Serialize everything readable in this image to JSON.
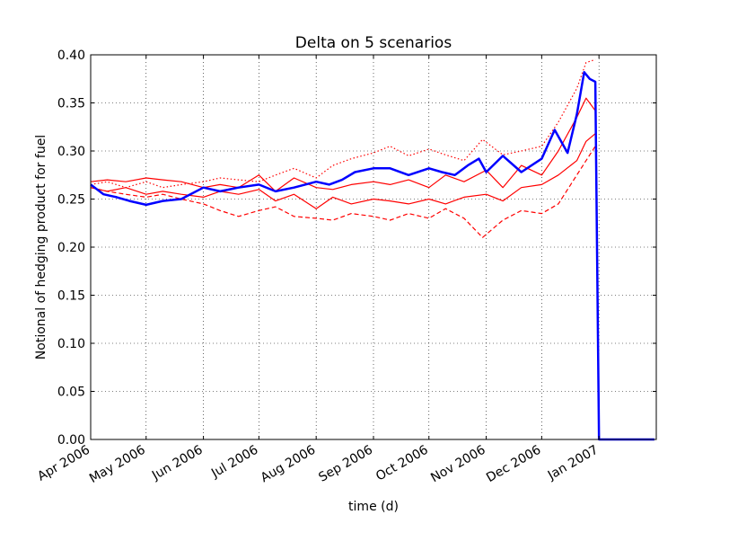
{
  "chart_data": {
    "type": "line",
    "title": "Delta on 5 scenarios",
    "xlabel": "time (d)",
    "ylabel": "Notional of hedging product for fuel",
    "xlim": [
      "2006-04-01",
      "2007-02-01"
    ],
    "ylim": [
      0,
      0.4
    ],
    "grid": true,
    "x_ticks": [
      "Apr 2006",
      "May 2006",
      "Jun 2006",
      "Jul 2006",
      "Aug 2006",
      "Sep 2006",
      "Oct 2006",
      "Nov 2006",
      "Dec 2006",
      "Jan 2007"
    ],
    "y_ticks": [
      "0.00",
      "0.05",
      "0.10",
      "0.15",
      "0.20",
      "0.25",
      "0.30",
      "0.35",
      "0.40"
    ],
    "colors": {
      "main": "#0000ff",
      "scenario": "#ff0000"
    },
    "series": [
      {
        "style": "solid-bold",
        "color": "#0000ff",
        "points": [
          [
            "2006-04-01",
            0.265
          ],
          [
            "2006-04-08",
            0.255
          ],
          [
            "2006-04-15",
            0.252
          ],
          [
            "2006-04-22",
            0.248
          ],
          [
            "2006-05-01",
            0.244
          ],
          [
            "2006-05-10",
            0.248
          ],
          [
            "2006-05-20",
            0.25
          ],
          [
            "2006-06-01",
            0.262
          ],
          [
            "2006-06-10",
            0.258
          ],
          [
            "2006-06-20",
            0.262
          ],
          [
            "2006-07-01",
            0.265
          ],
          [
            "2006-07-10",
            0.258
          ],
          [
            "2006-07-20",
            0.262
          ],
          [
            "2006-08-01",
            0.268
          ],
          [
            "2006-08-08",
            0.265
          ],
          [
            "2006-08-15",
            0.27
          ],
          [
            "2006-08-22",
            0.278
          ],
          [
            "2006-09-01",
            0.282
          ],
          [
            "2006-09-10",
            0.282
          ],
          [
            "2006-09-20",
            0.275
          ],
          [
            "2006-10-01",
            0.282
          ],
          [
            "2006-10-08",
            0.278
          ],
          [
            "2006-10-15",
            0.275
          ],
          [
            "2006-10-22",
            0.285
          ],
          [
            "2006-10-28",
            0.292
          ],
          [
            "2006-11-01",
            0.278
          ],
          [
            "2006-11-10",
            0.295
          ],
          [
            "2006-11-20",
            0.278
          ],
          [
            "2006-12-01",
            0.292
          ],
          [
            "2006-12-08",
            0.322
          ],
          [
            "2006-12-15",
            0.298
          ],
          [
            "2006-12-20",
            0.338
          ],
          [
            "2006-12-24",
            0.382
          ],
          [
            "2006-12-27",
            0.375
          ],
          [
            "2006-12-30",
            0.372
          ],
          [
            "2007-01-01",
            0.0
          ],
          [
            "2007-01-31",
            0.0
          ]
        ]
      },
      {
        "style": "solid",
        "color": "#ff0000",
        "points": [
          [
            "2006-04-01",
            0.268
          ],
          [
            "2006-04-10",
            0.27
          ],
          [
            "2006-04-20",
            0.268
          ],
          [
            "2006-05-01",
            0.272
          ],
          [
            "2006-05-10",
            0.27
          ],
          [
            "2006-05-20",
            0.268
          ],
          [
            "2006-06-01",
            0.262
          ],
          [
            "2006-06-10",
            0.265
          ],
          [
            "2006-06-20",
            0.262
          ],
          [
            "2006-07-01",
            0.275
          ],
          [
            "2006-07-10",
            0.258
          ],
          [
            "2006-07-20",
            0.272
          ],
          [
            "2006-08-01",
            0.262
          ],
          [
            "2006-08-10",
            0.26
          ],
          [
            "2006-08-20",
            0.265
          ],
          [
            "2006-09-01",
            0.268
          ],
          [
            "2006-09-10",
            0.265
          ],
          [
            "2006-09-20",
            0.27
          ],
          [
            "2006-10-01",
            0.262
          ],
          [
            "2006-10-10",
            0.275
          ],
          [
            "2006-10-20",
            0.268
          ],
          [
            "2006-11-01",
            0.28
          ],
          [
            "2006-11-10",
            0.262
          ],
          [
            "2006-11-20",
            0.285
          ],
          [
            "2006-12-01",
            0.275
          ],
          [
            "2006-12-10",
            0.3
          ],
          [
            "2006-12-20",
            0.335
          ],
          [
            "2006-12-25",
            0.355
          ],
          [
            "2006-12-30",
            0.342
          ]
        ]
      },
      {
        "style": "solid",
        "color": "#ff0000",
        "points": [
          [
            "2006-04-01",
            0.262
          ],
          [
            "2006-04-10",
            0.258
          ],
          [
            "2006-04-20",
            0.262
          ],
          [
            "2006-05-01",
            0.255
          ],
          [
            "2006-05-10",
            0.258
          ],
          [
            "2006-05-20",
            0.255
          ],
          [
            "2006-06-01",
            0.252
          ],
          [
            "2006-06-10",
            0.258
          ],
          [
            "2006-06-20",
            0.255
          ],
          [
            "2006-07-01",
            0.26
          ],
          [
            "2006-07-10",
            0.248
          ],
          [
            "2006-07-20",
            0.255
          ],
          [
            "2006-08-01",
            0.24
          ],
          [
            "2006-08-10",
            0.252
          ],
          [
            "2006-08-20",
            0.245
          ],
          [
            "2006-09-01",
            0.25
          ],
          [
            "2006-09-10",
            0.248
          ],
          [
            "2006-09-20",
            0.245
          ],
          [
            "2006-10-01",
            0.25
          ],
          [
            "2006-10-10",
            0.245
          ],
          [
            "2006-10-20",
            0.252
          ],
          [
            "2006-11-01",
            0.255
          ],
          [
            "2006-11-10",
            0.248
          ],
          [
            "2006-11-20",
            0.262
          ],
          [
            "2006-12-01",
            0.265
          ],
          [
            "2006-12-10",
            0.275
          ],
          [
            "2006-12-20",
            0.29
          ],
          [
            "2006-12-25",
            0.31
          ],
          [
            "2006-12-30",
            0.318
          ]
        ]
      },
      {
        "style": "dashed",
        "color": "#ff0000",
        "points": [
          [
            "2006-04-01",
            0.262
          ],
          [
            "2006-04-10",
            0.258
          ],
          [
            "2006-04-20",
            0.255
          ],
          [
            "2006-05-01",
            0.252
          ],
          [
            "2006-05-10",
            0.255
          ],
          [
            "2006-05-20",
            0.25
          ],
          [
            "2006-06-01",
            0.245
          ],
          [
            "2006-06-10",
            0.238
          ],
          [
            "2006-06-20",
            0.232
          ],
          [
            "2006-07-01",
            0.238
          ],
          [
            "2006-07-10",
            0.242
          ],
          [
            "2006-07-20",
            0.232
          ],
          [
            "2006-08-01",
            0.23
          ],
          [
            "2006-08-10",
            0.228
          ],
          [
            "2006-08-20",
            0.235
          ],
          [
            "2006-09-01",
            0.232
          ],
          [
            "2006-09-10",
            0.228
          ],
          [
            "2006-09-20",
            0.235
          ],
          [
            "2006-10-01",
            0.23
          ],
          [
            "2006-10-10",
            0.24
          ],
          [
            "2006-10-20",
            0.23
          ],
          [
            "2006-10-30",
            0.21
          ],
          [
            "2006-11-10",
            0.228
          ],
          [
            "2006-11-20",
            0.238
          ],
          [
            "2006-12-01",
            0.235
          ],
          [
            "2006-12-10",
            0.245
          ],
          [
            "2006-12-20",
            0.275
          ],
          [
            "2006-12-25",
            0.29
          ],
          [
            "2006-12-30",
            0.305
          ]
        ]
      },
      {
        "style": "dotted",
        "color": "#ff0000",
        "points": [
          [
            "2006-04-01",
            0.265
          ],
          [
            "2006-04-10",
            0.268
          ],
          [
            "2006-04-20",
            0.262
          ],
          [
            "2006-05-01",
            0.268
          ],
          [
            "2006-05-10",
            0.262
          ],
          [
            "2006-05-20",
            0.265
          ],
          [
            "2006-06-01",
            0.268
          ],
          [
            "2006-06-10",
            0.272
          ],
          [
            "2006-06-20",
            0.27
          ],
          [
            "2006-07-01",
            0.268
          ],
          [
            "2006-07-10",
            0.275
          ],
          [
            "2006-07-20",
            0.282
          ],
          [
            "2006-08-01",
            0.272
          ],
          [
            "2006-08-10",
            0.285
          ],
          [
            "2006-08-20",
            0.292
          ],
          [
            "2006-09-01",
            0.298
          ],
          [
            "2006-09-10",
            0.305
          ],
          [
            "2006-09-20",
            0.295
          ],
          [
            "2006-10-01",
            0.302
          ],
          [
            "2006-10-10",
            0.296
          ],
          [
            "2006-10-20",
            0.29
          ],
          [
            "2006-10-30",
            0.312
          ],
          [
            "2006-11-10",
            0.296
          ],
          [
            "2006-11-20",
            0.3
          ],
          [
            "2006-12-01",
            0.305
          ],
          [
            "2006-12-10",
            0.33
          ],
          [
            "2006-12-20",
            0.365
          ],
          [
            "2006-12-25",
            0.392
          ],
          [
            "2006-12-30",
            0.395
          ]
        ]
      }
    ]
  }
}
